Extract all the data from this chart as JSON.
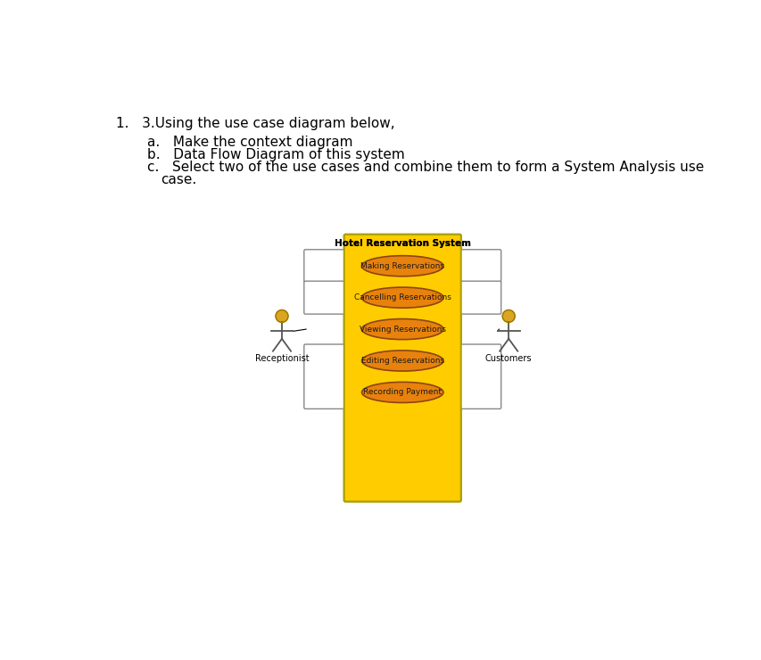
{
  "title_text": "1.   3.Using the use case diagram below,",
  "sub_items": [
    "a.   Make the context diagram",
    "b.   Data Flow Diagram of this system",
    "c.   Select two of the use cases and combine them to form a System Analysis use\n         case."
  ],
  "diagram_title": "Hotel Reservation System",
  "use_cases": [
    "Making Reservations",
    "Cancelling Reservations",
    "Viewing Reservations",
    "Editing Reservations",
    "Recording Payment"
  ],
  "actors": [
    "Receptionist",
    "Customers"
  ],
  "bg_color": "#ffffff",
  "system_box_fill": "#FFCC00",
  "system_box_edge": "#ccaa00",
  "ellipse_fill": "#E8820C",
  "ellipse_edge": "#8B4513",
  "ellipse_text_color": "#1a1a1a",
  "actor_head_color": "#DAA520",
  "actor_line_color": "#555555",
  "title_fontsize": 11,
  "sub_fontsize": 11,
  "diagram_title_fontsize": 7.5,
  "usecase_fontsize": 6.5,
  "actor_fontsize": 7
}
